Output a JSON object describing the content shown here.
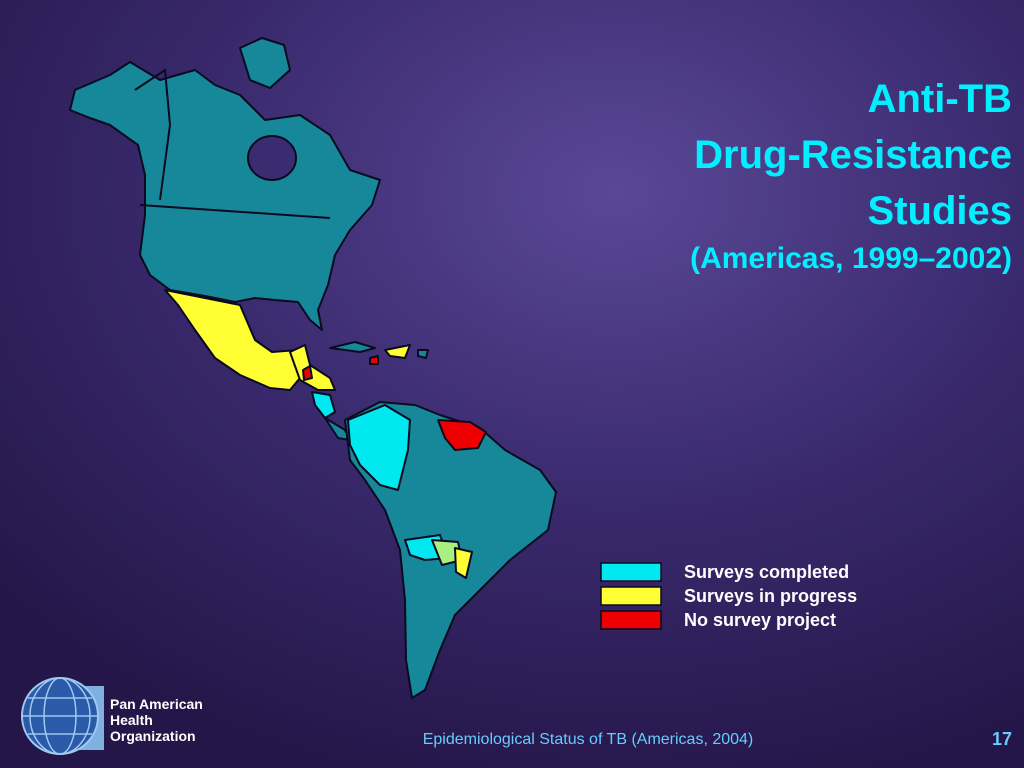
{
  "title": {
    "lines": [
      "Anti-TB",
      "Drug-Resistance",
      "Studies"
    ],
    "subtitle": "(Americas, 1999–2002)"
  },
  "legend": [
    {
      "label": "Surveys completed",
      "color": "#00e8f0"
    },
    {
      "label": "Surveys in progress",
      "color": "#ffff33"
    },
    {
      "label": "No survey project",
      "color": "#ee0000"
    }
  ],
  "organization": {
    "lines": [
      "Pan American",
      "Health",
      "Organization"
    ]
  },
  "footer": "Epidemiological Status of TB (Americas, 2004)",
  "page_number": "17"
}
